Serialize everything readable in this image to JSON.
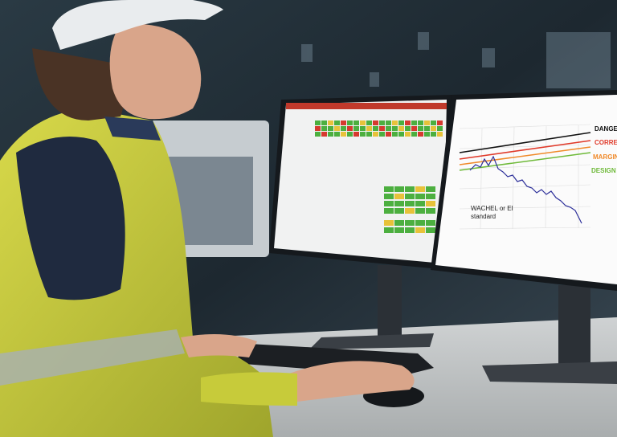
{
  "right_monitor": {
    "legend": [
      "DANGER",
      "CORRECT",
      "MARGINA",
      "DESIGN"
    ],
    "annotation": [
      "WACHEL or EI",
      "standard"
    ]
  }
}
